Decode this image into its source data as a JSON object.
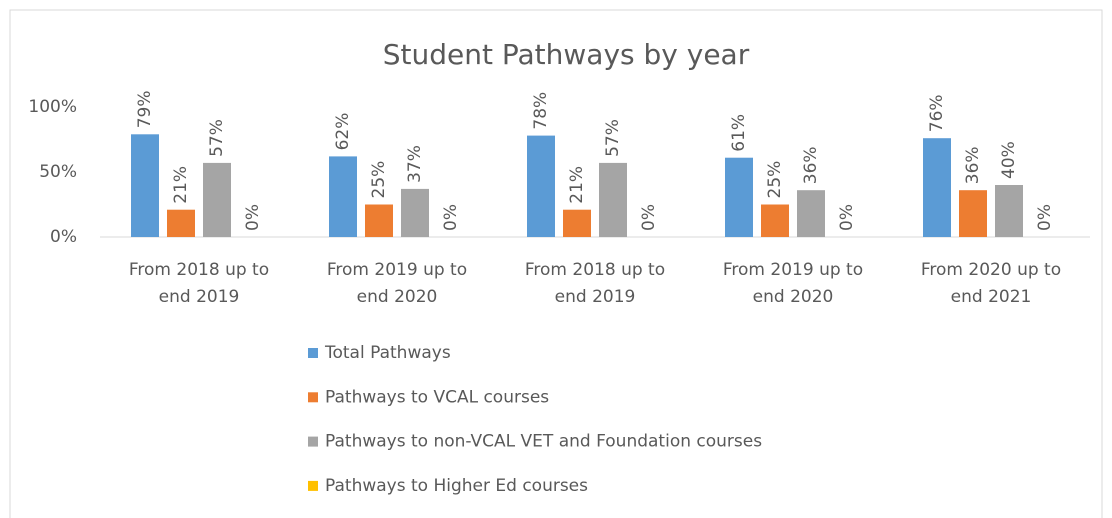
{
  "chart_data": {
    "type": "bar",
    "title": "Student Pathways by year",
    "categories": [
      "From 2018 up to end 2019",
      "From 2019 up to end 2020",
      "From 2018 up to end 2019",
      "From 2019 up to end 2020",
      "From 2020 up to end 2021"
    ],
    "series": [
      {
        "name": "Total Pathways",
        "color": "#5b9bd5",
        "values": [
          79,
          62,
          78,
          61,
          76
        ],
        "value_labels": [
          "79%",
          "62%",
          "78%",
          "61%",
          "76%"
        ]
      },
      {
        "name": "Pathways to VCAL courses",
        "color": "#ed7d31",
        "values": [
          21,
          25,
          21,
          25,
          36
        ],
        "value_labels": [
          "21%",
          "25%",
          "21%",
          "25%",
          "36%"
        ]
      },
      {
        "name": "Pathways to non-VCAL VET and Foundation courses",
        "color": "#a5a5a5",
        "values": [
          57,
          37,
          57,
          36,
          40
        ],
        "value_labels": [
          "57%",
          "37%",
          "57%",
          "36%",
          "40%"
        ]
      },
      {
        "name": "Pathways to Higher Ed courses",
        "color": "#ffc000",
        "values": [
          0,
          0,
          0,
          0,
          0
        ],
        "value_labels": [
          "0%",
          "0%",
          "0%",
          "0%",
          "0%"
        ]
      }
    ],
    "ylim": [
      0,
      100
    ],
    "yticks": [
      {
        "value": 0,
        "label": "0%"
      },
      {
        "value": 50,
        "label": "50%"
      },
      {
        "value": 100,
        "label": "100%"
      }
    ],
    "grid": false,
    "legend": "bottom"
  }
}
